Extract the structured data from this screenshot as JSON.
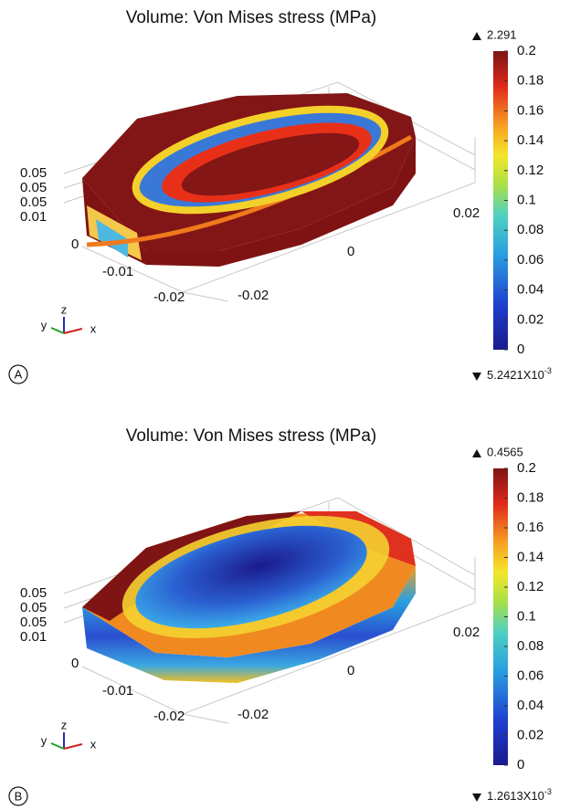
{
  "panels": [
    {
      "label": "A",
      "title": "Volume: Von Mises stress (MPa)",
      "max": "2.291",
      "min": {
        "base": "5.2421X10",
        "exponent": "-3"
      },
      "colorbar": {
        "range": [
          0,
          0.2
        ],
        "ticks": [
          0,
          0.02,
          0.04,
          0.06,
          0.08,
          0.1,
          0.12,
          0.14,
          0.16,
          0.18,
          0.2
        ]
      },
      "axis_ticks": [
        "0.05",
        "0.05",
        "0.05",
        "0.01",
        "0",
        "-0.01",
        "-0.02",
        "-0.02",
        "0",
        "0.02"
      ],
      "triad": [
        "z",
        "y",
        "x"
      ]
    },
    {
      "label": "B",
      "title": "Volume: Von Mises stress (MPa)",
      "max": "0.4565",
      "min": {
        "base": "1.2613X10",
        "exponent": "-3"
      },
      "colorbar": {
        "range": [
          0,
          0.2
        ],
        "ticks": [
          0,
          0.02,
          0.04,
          0.06,
          0.08,
          0.1,
          0.12,
          0.14,
          0.16,
          0.18,
          0.2
        ]
      },
      "axis_ticks": [
        "0.05",
        "0.05",
        "0.05",
        "0.01",
        "0",
        "-0.01",
        "-0.02",
        "-0.02",
        "0",
        "0.02"
      ],
      "triad": [
        "z",
        "y",
        "x"
      ]
    }
  ]
}
